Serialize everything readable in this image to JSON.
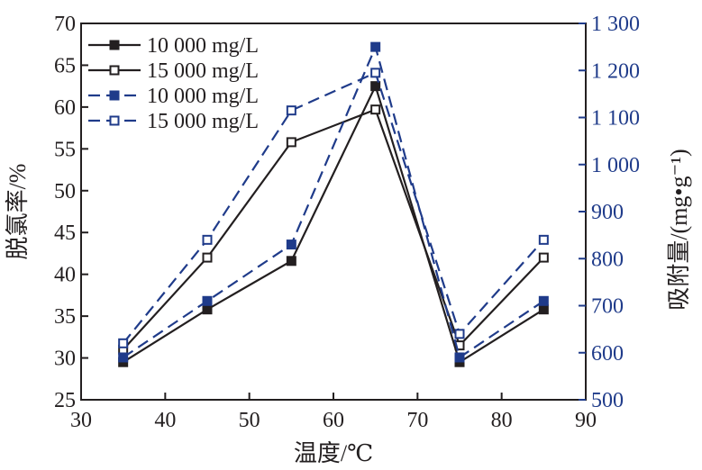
{
  "chart_data": {
    "type": "line",
    "xlabel": "温度/℃",
    "ylabel_left": "脱氯率/%",
    "ylabel_right": "吸附量/(mg•g⁻¹)",
    "xlim": [
      30,
      90
    ],
    "ylim_left": [
      25,
      70
    ],
    "ylim_right": [
      500,
      1300
    ],
    "x_ticks": [
      "30",
      "40",
      "50",
      "60",
      "70",
      "80",
      "90"
    ],
    "y_left_ticks": [
      "25",
      "30",
      "35",
      "40",
      "45",
      "50",
      "55",
      "60",
      "65",
      "70"
    ],
    "y_right_ticks": [
      "500",
      "600",
      "700",
      "800",
      "900",
      "1 000",
      "1 100",
      "1 200",
      "1 300"
    ],
    "x": [
      35,
      45,
      55,
      65,
      75,
      85
    ],
    "series": [
      {
        "name": "10 000 mg/L",
        "axis": "left",
        "style": "solid",
        "marker": "filled-square",
        "color": "#231f20",
        "values": [
          29.5,
          35.8,
          41.6,
          62.5,
          29.5,
          35.8
        ]
      },
      {
        "name": "15 000 mg/L",
        "axis": "left",
        "style": "solid",
        "marker": "open-square",
        "color": "#231f20",
        "values": [
          31.0,
          42.0,
          55.8,
          59.7,
          31.5,
          42.0
        ]
      },
      {
        "name": "10 000 mg/L",
        "axis": "right",
        "style": "dashed",
        "marker": "filled-square",
        "color": "#1f3b8a",
        "values": [
          590,
          710,
          830,
          1250,
          590,
          710
        ]
      },
      {
        "name": "15 000 mg/L",
        "axis": "right",
        "style": "dashed",
        "marker": "open-square",
        "color": "#1f3b8a",
        "values": [
          620,
          840,
          1115,
          1195,
          640,
          840
        ]
      }
    ],
    "legend_position": "top-left",
    "grid": false
  }
}
